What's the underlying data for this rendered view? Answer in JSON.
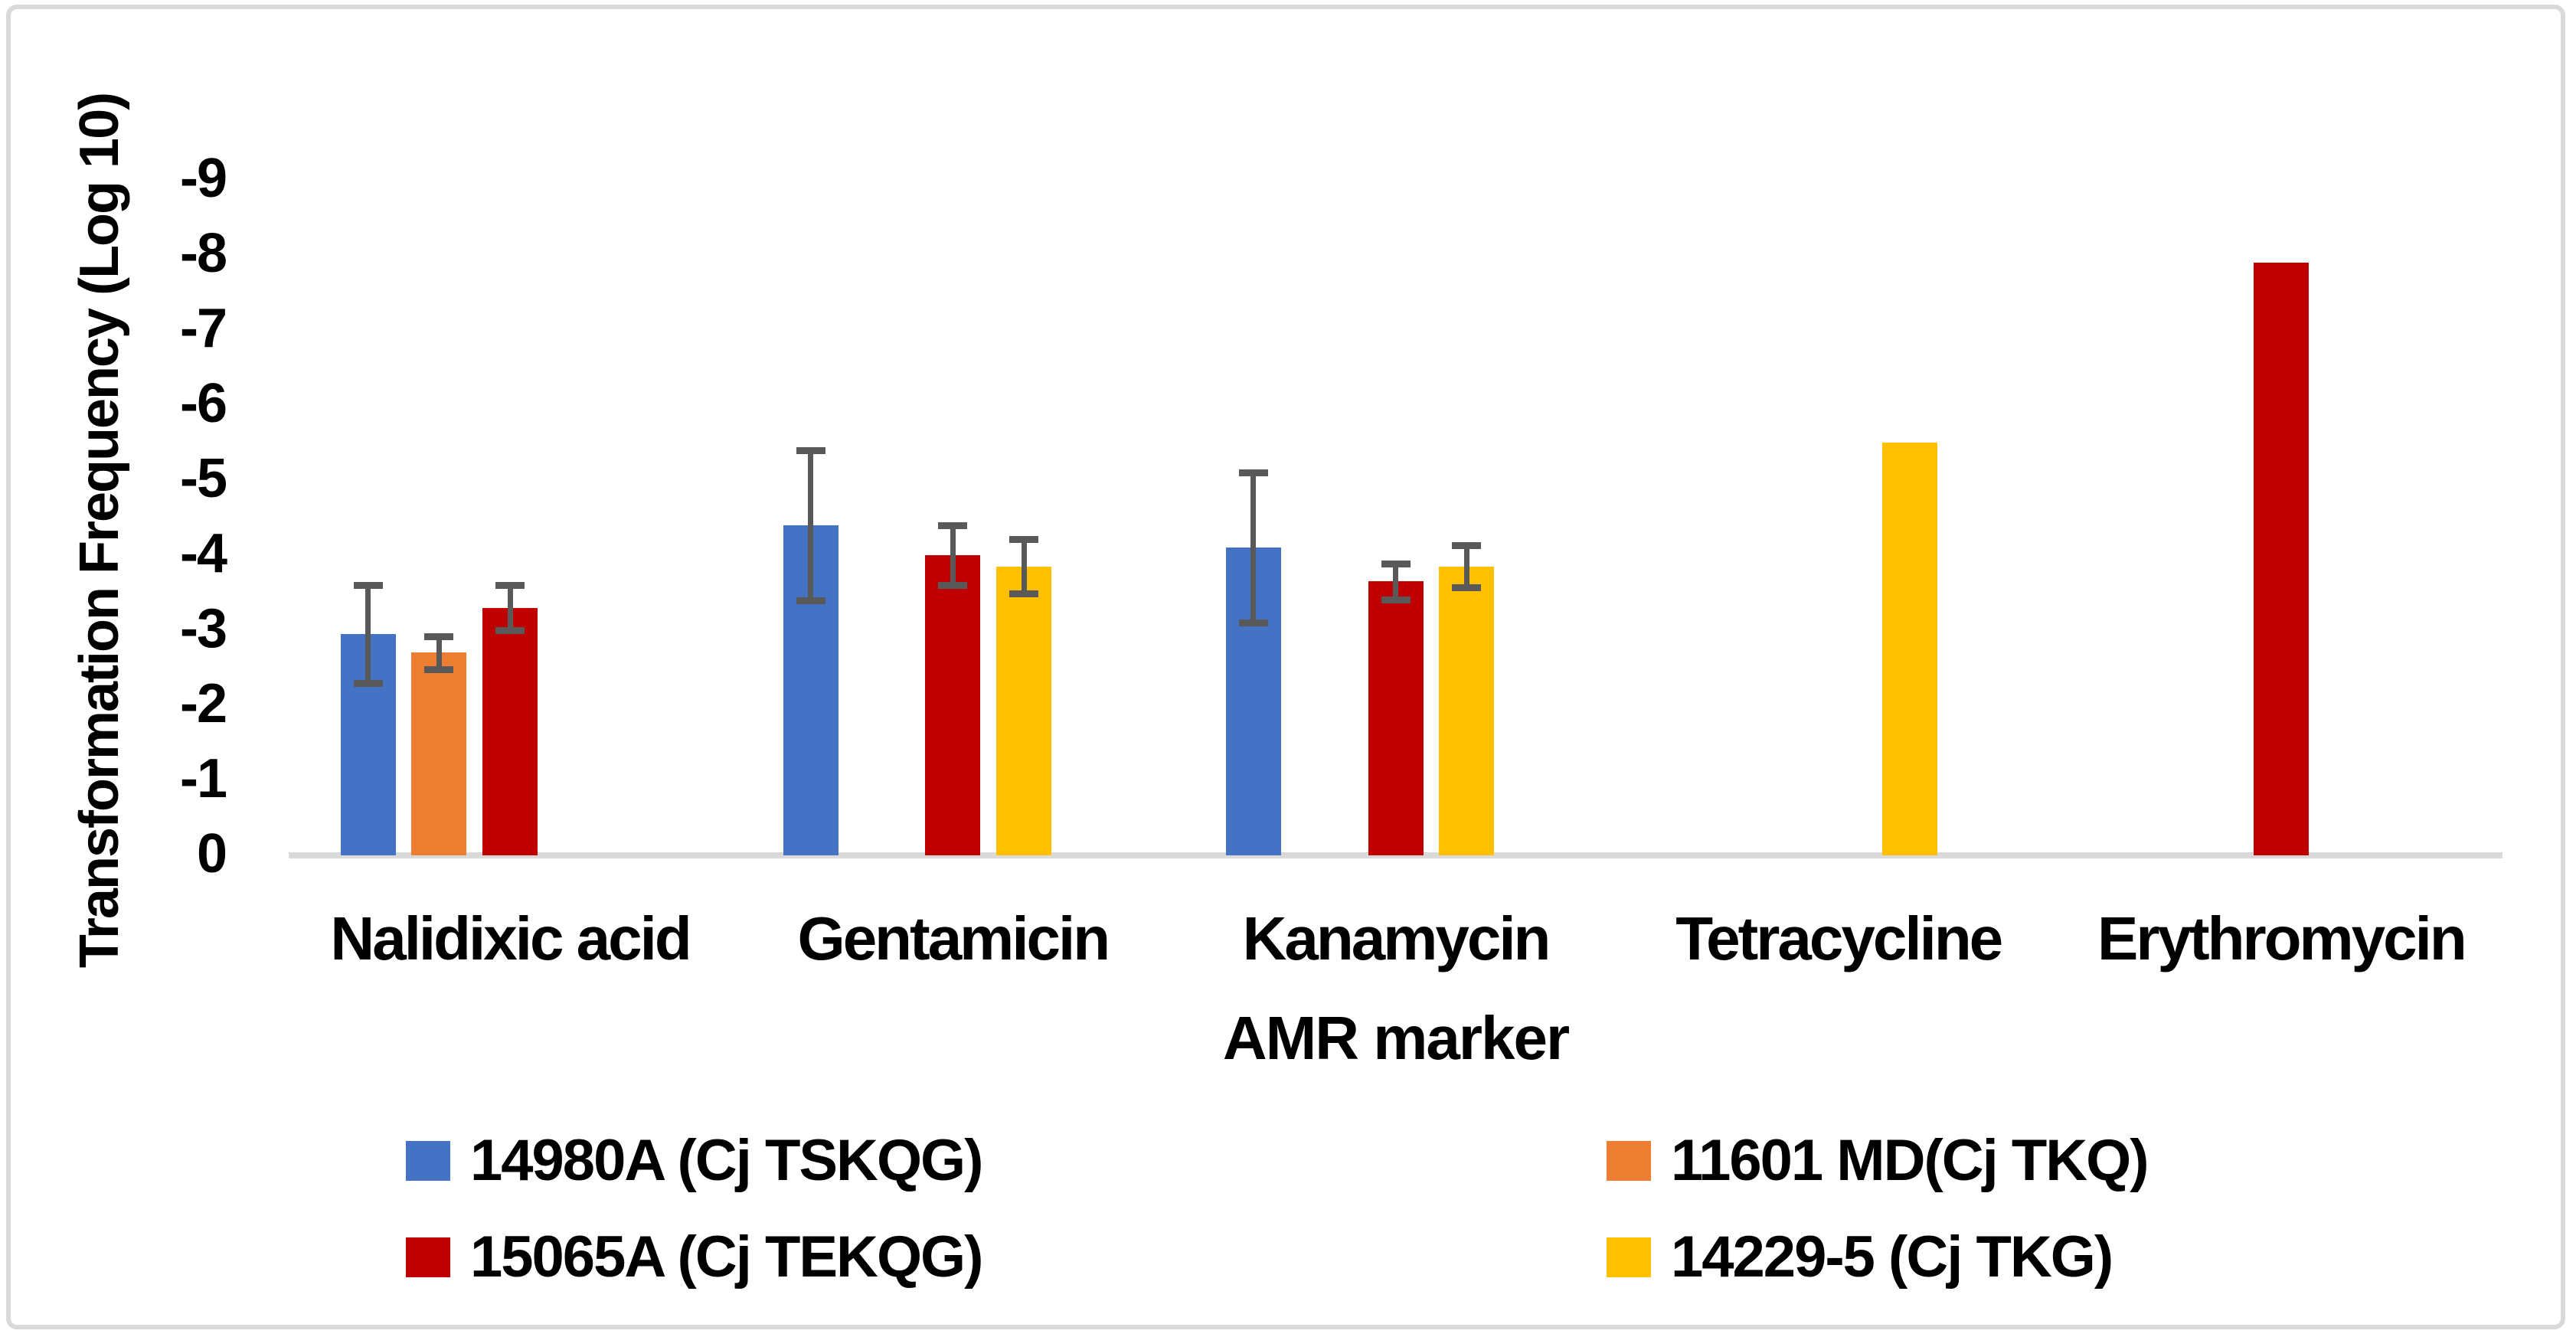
{
  "figure": {
    "background_color": "#FFFFFF",
    "border_color": "#D9D9D9"
  },
  "chart_data": {
    "type": "bar",
    "title": "",
    "xlabel": "AMR marker",
    "ylabel": "Transformation Frequency (Log 10)",
    "y_axis": {
      "tick_labels": [
        "0",
        "-1",
        "-2",
        "-3",
        "-4",
        "-5",
        "-6",
        "-7",
        "-8",
        "-9"
      ],
      "tick_values": [
        0,
        -1,
        -2,
        -3,
        -4,
        -5,
        -6,
        -7,
        -8,
        -9
      ],
      "min": 0,
      "max": -9,
      "inverted_down_is_zero": true,
      "grid": false
    },
    "categories": [
      "Nalidixic acid",
      "Gentamicin",
      "Kanamycin",
      "Tetracycline",
      "Erythromycin"
    ],
    "series": [
      {
        "name": "14980A (Cj TSKQG)",
        "color": "#4472C4",
        "values": [
          -2.95,
          -4.4,
          -4.1,
          null,
          null
        ],
        "errors": [
          0.65,
          1.0,
          1.0,
          null,
          null
        ]
      },
      {
        "name": "11601 MD(Cj TKQ)",
        "color": "#ED7D31",
        "values": [
          -2.7,
          null,
          null,
          null,
          null
        ],
        "errors": [
          0.22,
          null,
          null,
          null,
          null
        ]
      },
      {
        "name": "15065A (Cj TEKQG)",
        "color": "#C00000",
        "values": [
          -3.3,
          -4.0,
          -3.65,
          null,
          -7.9
        ],
        "errors": [
          0.3,
          0.4,
          0.24,
          null,
          0
        ]
      },
      {
        "name": "14229-5 (Cj TKG)",
        "color": "#FFC000",
        "values": [
          null,
          -3.85,
          -3.85,
          -5.5,
          null
        ],
        "errors": [
          null,
          0.36,
          0.28,
          0,
          null
        ]
      }
    ],
    "error_bar_color": "#595959",
    "axis_line_color": "#D9D9D9",
    "legend_position": "bottom",
    "legend_entries": [
      "14980A (Cj TSKQG)",
      "11601 MD(Cj TKQ)",
      "15065A (Cj TEKQG)",
      "14229-5 (Cj TKG)"
    ]
  }
}
